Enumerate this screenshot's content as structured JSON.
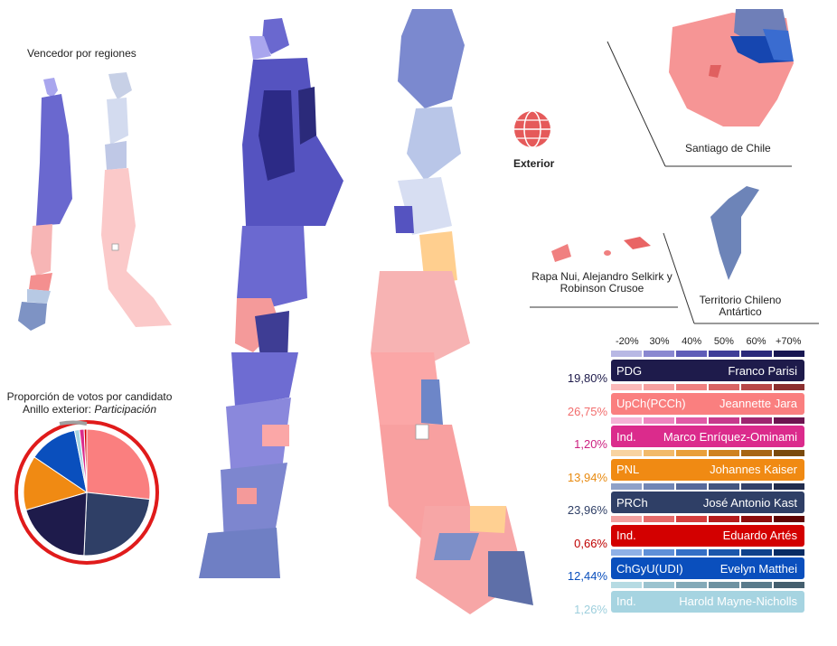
{
  "titles": {
    "winner_by_region": "Vencedor por regiones",
    "vote_share": "Proporción de votos por candidato",
    "outer_ring_prefix": "Anillo exterior: ",
    "outer_ring_value": "Participación"
  },
  "labels": {
    "exterior": "Exterior",
    "santiago": "Santiago de Chile",
    "islands": "Rapa Nui, Alejandro Selkirk y Robinson Crusoe",
    "antarctic": "Territorio Chileno Antártico"
  },
  "scale_ticks": [
    "-20%",
    "30%",
    "40%",
    "50%",
    "60%",
    "+70%"
  ],
  "candidates": [
    {
      "party": "PDG",
      "name": "Franco Parisi",
      "pct": "19,80%",
      "share": 19.8,
      "color": "#1e1b4b",
      "pct_color": "#1e1b4b",
      "scale": [
        "#8d8ad4",
        "#6e6bc4",
        "#5553b0",
        "#3f3e98",
        "#2c2b7a",
        "#1b1a55"
      ]
    },
    {
      "party": "UpCh(PCCh)",
      "name": "Jeannette Jara",
      "pct": "26,75%",
      "share": 26.75,
      "color": "#fa7f7f",
      "pct_color": "#f26d6d",
      "scale": [
        "#fbb9b9",
        "#f7a0a0",
        "#ef8080",
        "#d86464",
        "#b84848",
        "#8c2f2f"
      ]
    },
    {
      "party": "Ind.",
      "name": "Marco Enríquez-Ominami",
      "pct": "1,20%",
      "share": 1.2,
      "color": "#db2b8c",
      "pct_color": "#cc1f7f",
      "scale": [
        "#f5b2d5",
        "#ee84bf",
        "#e05aa6",
        "#c63a8c",
        "#9e2670",
        "#6d1450"
      ]
    },
    {
      "party": "PNL",
      "name": "Johannes Kaiser",
      "pct": "13,94%",
      "share": 13.94,
      "color": "#f08a13",
      "pct_color": "#e88a10",
      "scale": [
        "#f8d3a0",
        "#f2ba6a",
        "#e99f3a",
        "#cf8220",
        "#a76514",
        "#7a4a0c"
      ]
    },
    {
      "party": "PRCh",
      "name": "José Antonio Kast",
      "pct": "23,96%",
      "share": 23.96,
      "color": "#2f3f66",
      "pct_color": "#2f3f66",
      "scale": [
        "#8fa1c8",
        "#7186b5",
        "#56699b",
        "#43557f",
        "#33426a",
        "#222d4d"
      ]
    },
    {
      "party": "Ind.",
      "name": "Eduardo Artés",
      "pct": "0,66%",
      "share": 0.66,
      "color": "#d30000",
      "pct_color": "#c00000",
      "scale": [
        "#f1a0a0",
        "#e56a6a",
        "#d43d3d",
        "#b51c1c",
        "#8d0d0d",
        "#5e0505"
      ]
    },
    {
      "party": "ChGyU(UDI)",
      "name": "Evelyn Matthei",
      "pct": "12,44%",
      "share": 12.44,
      "color": "#0a4fbd",
      "pct_color": "#0a4fbd",
      "scale": [
        "#8fb0e6",
        "#5e8fd8",
        "#336fc6",
        "#1b57ac",
        "#0f428c",
        "#082c64"
      ]
    },
    {
      "party": "Ind.",
      "name": "Harold Mayne-Nicholls",
      "pct": "1,26%",
      "share": 1.26,
      "color": "#a6d4e1",
      "pct_color": "#9ecfdd",
      "scale": [
        "#b6dbe3",
        "#9bc3cf",
        "#84aab8",
        "#6e92a1",
        "#5a7b8b",
        "#455f6e"
      ]
    }
  ],
  "pie_colors": {
    "ring_outer": "#e01b1b",
    "ring_gray": "#a0a0a0"
  }
}
